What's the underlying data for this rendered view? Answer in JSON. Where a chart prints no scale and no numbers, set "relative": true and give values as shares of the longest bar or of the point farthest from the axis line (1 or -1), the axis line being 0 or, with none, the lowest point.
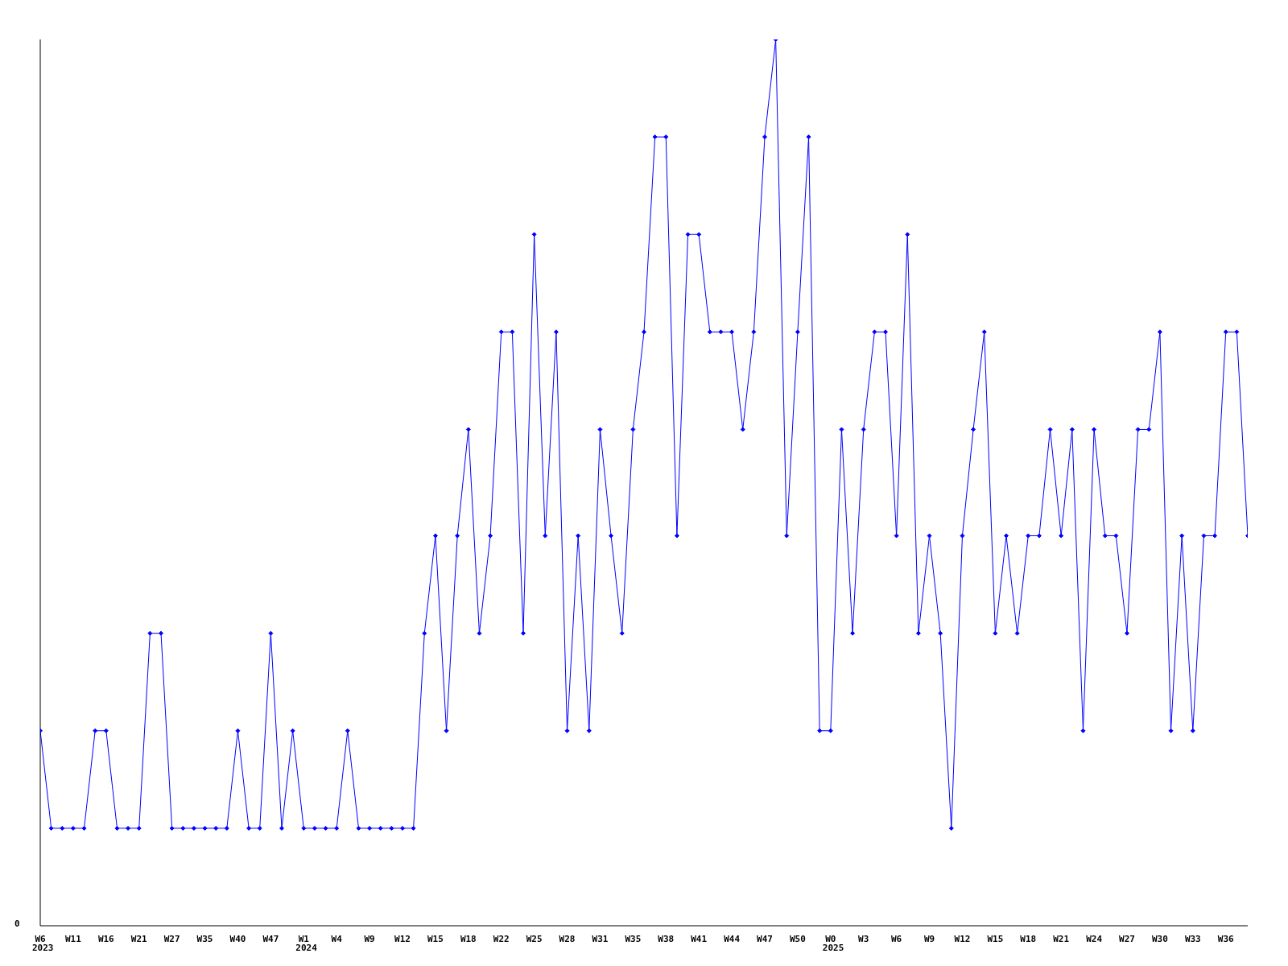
{
  "chart_data": {
    "type": "line",
    "relative": true,
    "marker": "diamond",
    "line_style": "solid",
    "grid": false,
    "legend": false,
    "annotations": [
      "0",
      "2023",
      "2024",
      "2025"
    ],
    "categories": [
      "W6",
      null,
      null,
      "W11",
      null,
      null,
      "W16",
      null,
      null,
      "W21",
      null,
      null,
      "W27",
      null,
      null,
      "W35",
      null,
      null,
      "W40",
      null,
      null,
      "W47",
      null,
      null,
      "W1",
      null,
      null,
      "W4",
      null,
      null,
      "W9",
      null,
      null,
      "W12",
      null,
      null,
      "W15",
      null,
      null,
      "W18",
      null,
      null,
      "W22",
      null,
      null,
      "W25",
      null,
      null,
      "W28",
      null,
      null,
      "W31",
      null,
      null,
      "W35",
      null,
      null,
      "W38",
      null,
      null,
      "W41",
      null,
      null,
      "W44",
      null,
      null,
      "W47",
      null,
      null,
      "W50",
      null,
      null,
      "W0",
      null,
      null,
      "W3",
      null,
      null,
      "W6",
      null,
      null,
      "W9",
      null,
      null,
      "W12",
      null,
      null,
      "W15",
      null,
      null,
      "W18",
      null,
      null,
      "W21",
      null,
      null,
      "W24",
      null,
      null,
      "W27",
      null,
      null,
      "W30",
      null,
      null,
      "W33",
      null,
      null,
      "W36",
      null,
      null
    ],
    "series": [
      {
        "color": "#0000ff",
        "values": [
          0.22,
          0.11,
          0.11,
          0.11,
          0.11,
          0.22,
          0.22,
          0.11,
          0.11,
          0.11,
          0.33,
          0.33,
          0.11,
          0.11,
          0.11,
          0.11,
          0.11,
          0.11,
          0.22,
          0.11,
          0.11,
          0.33,
          0.11,
          0.22,
          0.11,
          0.11,
          0.11,
          0.11,
          0.22,
          0.11,
          0.11,
          0.11,
          0.11,
          0.11,
          0.11,
          0.33,
          0.44,
          0.22,
          0.44,
          0.56,
          0.33,
          0.44,
          0.67,
          0.67,
          0.33,
          0.78,
          0.44,
          0.67,
          0.22,
          0.44,
          0.22,
          0.56,
          0.44,
          0.33,
          0.56,
          0.67,
          0.89,
          0.89,
          0.44,
          0.78,
          0.78,
          0.67,
          0.67,
          0.67,
          0.56,
          0.67,
          0.89,
          1,
          0.44,
          0.67,
          0.89,
          0.22,
          0.22,
          0.56,
          0.33,
          0.56,
          0.67,
          0.67,
          0.44,
          0.78,
          0.33,
          0.44,
          0.33,
          0.11,
          0.44,
          0.56,
          0.67,
          0.33,
          0.44,
          0.33,
          0.44,
          0.44,
          0.56,
          0.44,
          0.56,
          0.22,
          0.56,
          0.44,
          0.44,
          0.33,
          0.56,
          0.56,
          0.67,
          0.22,
          0.44,
          0.22,
          0.44,
          0.44,
          0.67,
          0.67,
          0.44
        ]
      }
    ]
  }
}
